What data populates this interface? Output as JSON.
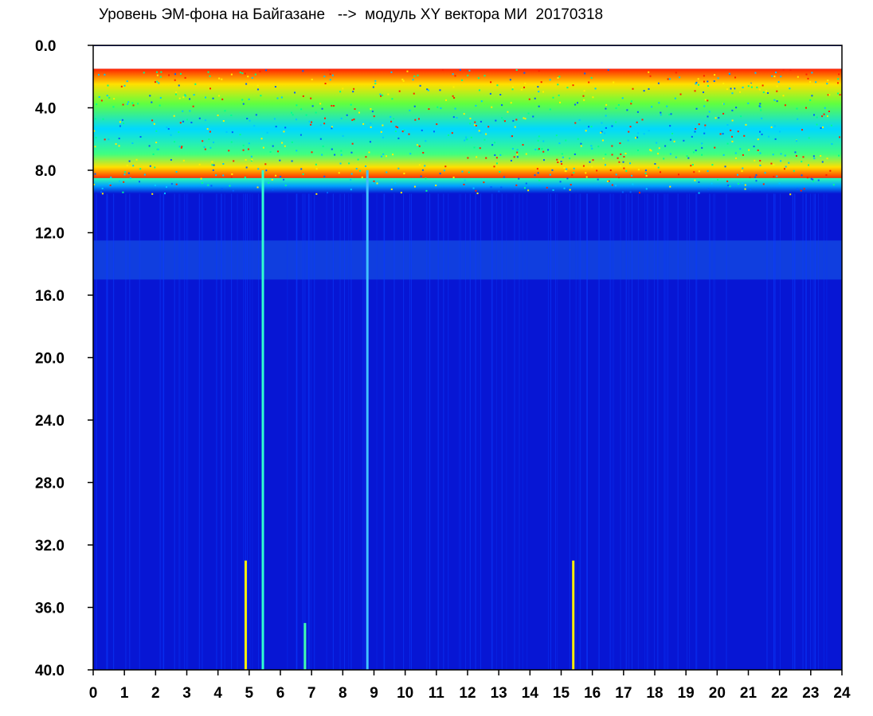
{
  "chart_data": {
    "type": "heatmap",
    "title": "Уровень ЭМ-фона на Байгазане   -->  модуль XY вектора МИ  20170318",
    "x_ticks": [
      "0",
      "1",
      "2",
      "3",
      "4",
      "5",
      "6",
      "7",
      "8",
      "9",
      "10",
      "11",
      "12",
      "13",
      "14",
      "15",
      "16",
      "17",
      "18",
      "19",
      "20",
      "21",
      "22",
      "23",
      "24"
    ],
    "y_ticks": [
      "0.0",
      "4.0",
      "8.0",
      "12.0",
      "16.0",
      "20.0",
      "24.0",
      "28.0",
      "32.0",
      "36.0",
      "40.0"
    ],
    "xlim": [
      0,
      24
    ],
    "ylim": [
      0,
      40
    ],
    "y_inverted": true,
    "colormap": [
      "#0000d8",
      "#0060ff",
      "#00c8ff",
      "#00ff9a",
      "#a8ff00",
      "#ffff00",
      "#ff3000"
    ],
    "background_color": "#0716d4",
    "hot_band_depth": [
      1.5,
      8.5
    ],
    "transition_depth": [
      8.5,
      9.5
    ],
    "secondary_band_depth": [
      12.5,
      15
    ],
    "bright_vertical_lines": [
      {
        "x": 4.85,
        "y_from": 33,
        "y_to": 40,
        "color": "#ffee00"
      },
      {
        "x": 5.4,
        "y_from": 8,
        "y_to": 40,
        "color": "#30ffd0"
      },
      {
        "x": 6.75,
        "y_from": 37,
        "y_to": 40,
        "color": "#40ffb0"
      },
      {
        "x": 8.75,
        "y_from": 8,
        "y_to": 40,
        "color": "#40c0ff"
      },
      {
        "x": 15.35,
        "y_from": 33,
        "y_to": 40,
        "color": "#ffee00"
      }
    ],
    "grid": false,
    "legend": "none"
  }
}
